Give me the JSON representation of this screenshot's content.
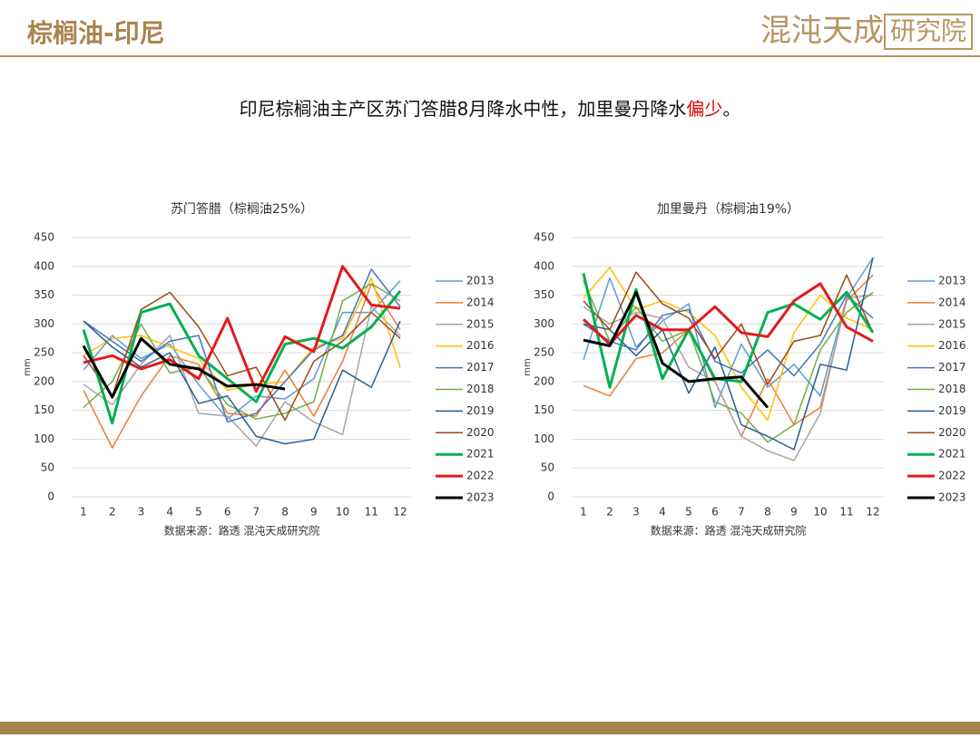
{
  "header": {
    "title": "棕榈油-印尼",
    "logo_text": "混沌天成",
    "logo_box": "研究院"
  },
  "subtitle": {
    "text": "印尼棕榈油主产区苏门答腊8月降水中性，加里曼丹降水",
    "highlight": "偏少",
    "end": "。",
    "highlight_color": "#e00000"
  },
  "chart_data": [
    {
      "type": "line",
      "title": "苏门答腊（棕榈油25%）",
      "ylabel": "mm",
      "source": "数据来源：路透 混沌天成研究院",
      "x": [
        1,
        2,
        3,
        4,
        5,
        6,
        7,
        8,
        9,
        10,
        11,
        12
      ],
      "xlim": [
        1,
        12
      ],
      "xticks": [
        1,
        2,
        3,
        4,
        5,
        6,
        7,
        8,
        9,
        10,
        11,
        12
      ],
      "ylim": [
        0,
        450
      ],
      "yticks": [
        0,
        50,
        100,
        150,
        200,
        250,
        300,
        350,
        400,
        450
      ],
      "grid": true,
      "legend": "right",
      "series": [
        {
          "name": "2013",
          "color": "#5b9bd5",
          "linewidth": 1.5,
          "values": [
            220,
            280,
            240,
            265,
            195,
            135,
            175,
            170,
            205,
            320,
            320,
            375
          ]
        },
        {
          "name": "2014",
          "color": "#ed7d31",
          "linewidth": 1.5,
          "values": [
            185,
            85,
            175,
            245,
            230,
            145,
            140,
            220,
            140,
            235,
            370,
            290
          ]
        },
        {
          "name": "2015",
          "color": "#a5a5a5",
          "linewidth": 1.5,
          "values": [
            195,
            160,
            230,
            280,
            145,
            140,
            88,
            165,
            130,
            108,
            330,
            280
          ]
        },
        {
          "name": "2016",
          "color": "#ffc000",
          "linewidth": 1.5,
          "values": [
            245,
            275,
            280,
            260,
            240,
            185,
            195,
            200,
            260,
            275,
            380,
            225
          ]
        },
        {
          "name": "2017",
          "color": "#4472c4",
          "linewidth": 1.5,
          "values": [
            305,
            270,
            235,
            270,
            280,
            130,
            145,
            200,
            255,
            280,
            395,
            330
          ]
        },
        {
          "name": "2018",
          "color": "#70ad47",
          "linewidth": 1.5,
          "values": [
            155,
            200,
            300,
            215,
            225,
            160,
            135,
            145,
            165,
            340,
            370,
            340
          ]
        },
        {
          "name": "2019",
          "color": "#255e91",
          "linewidth": 1.5,
          "values": [
            305,
            260,
            225,
            250,
            162,
            175,
            105,
            92,
            100,
            220,
            190,
            305
          ]
        },
        {
          "name": "2020",
          "color": "#9e480e",
          "linewidth": 1.5,
          "values": [
            245,
            175,
            325,
            355,
            295,
            210,
            225,
            133,
            235,
            270,
            320,
            275
          ]
        },
        {
          "name": "2021",
          "color": "#00b050",
          "linewidth": 3,
          "values": [
            290,
            128,
            320,
            335,
            245,
            205,
            165,
            265,
            275,
            258,
            295,
            357
          ]
        },
        {
          "name": "2022",
          "color": "#e31a1c",
          "linewidth": 3,
          "values": [
            233,
            245,
            222,
            238,
            205,
            310,
            183,
            278,
            252,
            400,
            333,
            327
          ]
        },
        {
          "name": "2023",
          "color": "#000000",
          "linewidth": 3,
          "values": [
            262,
            173,
            275,
            230,
            222,
            192,
            195,
            187,
            null,
            null,
            null,
            null
          ]
        }
      ]
    },
    {
      "type": "line",
      "title": "加里曼丹（棕榈油19%）",
      "ylabel": "mm",
      "source": "数据来源：路透 混沌天成研究院",
      "x": [
        1,
        2,
        3,
        4,
        5,
        6,
        7,
        8,
        9,
        10,
        11,
        12
      ],
      "xlim": [
        1,
        12
      ],
      "xticks": [
        1,
        2,
        3,
        4,
        5,
        6,
        7,
        8,
        9,
        10,
        11,
        12
      ],
      "ylim": [
        0,
        450
      ],
      "yticks": [
        0,
        50,
        100,
        150,
        200,
        250,
        300,
        350,
        400,
        450
      ],
      "grid": true,
      "legend": "right",
      "series": [
        {
          "name": "2013",
          "color": "#5b9bd5",
          "linewidth": 1.5,
          "values": [
            238,
            380,
            260,
            305,
            335,
            155,
            265,
            190,
            230,
            175,
            345,
            415
          ]
        },
        {
          "name": "2014",
          "color": "#ed7d31",
          "linewidth": 1.5,
          "values": [
            193,
            175,
            240,
            250,
            290,
            200,
            105,
            205,
            125,
            155,
            340,
            385
          ]
        },
        {
          "name": "2015",
          "color": "#a5a5a5",
          "linewidth": 1.5,
          "values": [
            330,
            300,
            320,
            310,
            225,
            200,
            105,
            80,
            63,
            145,
            345,
            350
          ]
        },
        {
          "name": "2016",
          "color": "#ffc000",
          "linewidth": 1.5,
          "values": [
            345,
            398,
            325,
            340,
            320,
            280,
            190,
            133,
            285,
            350,
            310,
            290
          ]
        },
        {
          "name": "2017",
          "color": "#4472c4",
          "linewidth": 1.5,
          "values": [
            300,
            270,
            255,
            315,
            325,
            235,
            215,
            255,
            210,
            265,
            350,
            310
          ]
        },
        {
          "name": "2018",
          "color": "#70ad47",
          "linewidth": 1.5,
          "values": [
            375,
            270,
            330,
            270,
            290,
            165,
            145,
            95,
            125,
            255,
            320,
            355
          ]
        },
        {
          "name": "2019",
          "color": "#255e91",
          "linewidth": 1.5,
          "values": [
            300,
            290,
            245,
            290,
            180,
            260,
            125,
            105,
            82,
            230,
            220,
            415
          ]
        },
        {
          "name": "2020",
          "color": "#9e480e",
          "linewidth": 1.5,
          "values": [
            340,
            290,
            390,
            335,
            310,
            240,
            300,
            195,
            270,
            280,
            385,
            285
          ]
        },
        {
          "name": "2021",
          "color": "#00b050",
          "linewidth": 3,
          "values": [
            388,
            190,
            360,
            205,
            290,
            205,
            200,
            320,
            335,
            308,
            355,
            285
          ]
        },
        {
          "name": "2022",
          "color": "#e31a1c",
          "linewidth": 3,
          "values": [
            308,
            265,
            315,
            290,
            290,
            330,
            285,
            278,
            340,
            370,
            295,
            270
          ]
        },
        {
          "name": "2023",
          "color": "#000000",
          "linewidth": 3,
          "values": [
            272,
            262,
            355,
            232,
            200,
            205,
            208,
            155,
            null,
            null,
            null,
            null
          ]
        }
      ]
    }
  ]
}
